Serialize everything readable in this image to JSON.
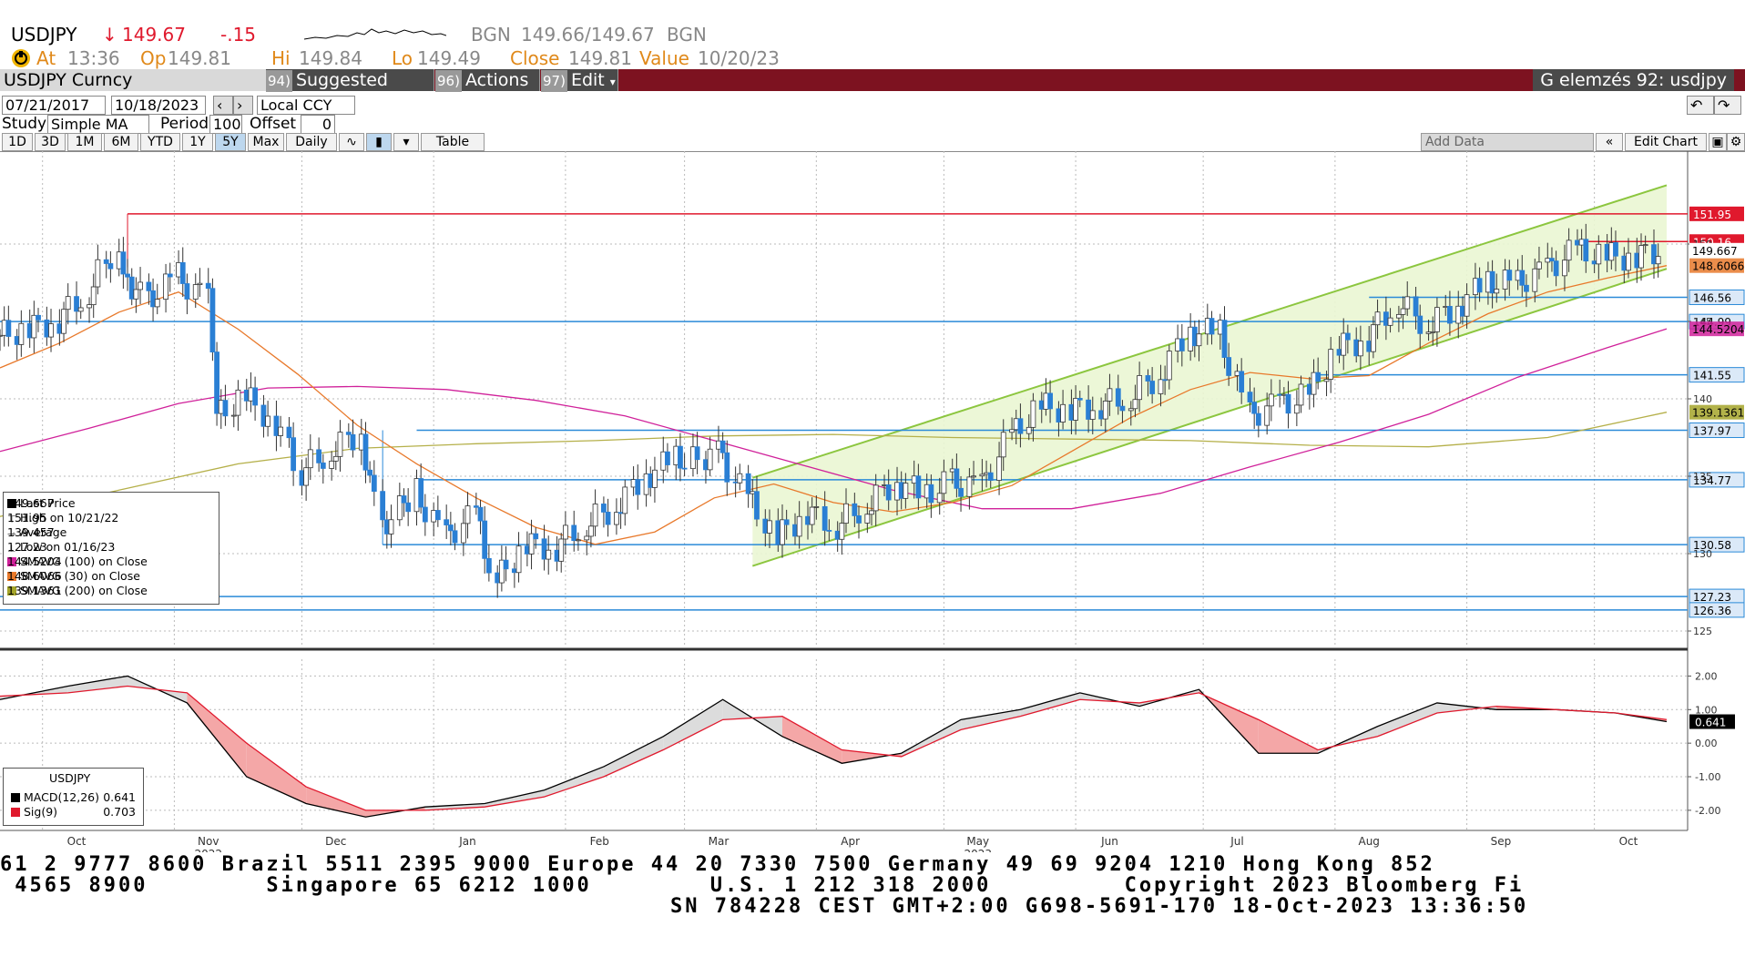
{
  "header": {
    "symbol": "USDJPY",
    "arrow": "↓",
    "last": "149.67",
    "change": "-.15",
    "src1": "BGN",
    "bidask": "149.66/149.67",
    "src2": "BGN",
    "at_label": "At",
    "at_time": "13:36",
    "op_label": "Op",
    "op": "149.81",
    "hi_label": "Hi",
    "hi": "149.84",
    "lo_label": "Lo",
    "lo": "149.49",
    "close_label": "Close",
    "close": "149.81",
    "value_label": "Value",
    "value_date": "10/20/23"
  },
  "toolbar": {
    "security": "USDJPY Curncy",
    "suggested_num": "94)",
    "suggested": "Suggested Charts",
    "actions_num": "96)",
    "actions": "Actions",
    "edit_num": "97)",
    "edit": "Edit",
    "right_title": "G elemzés 92: usdjpy"
  },
  "controls": {
    "start_date": "07/21/2017",
    "end_date": "10/18/2023",
    "currency": "Local CCY",
    "study_label": "Study",
    "study": "Simple MA",
    "period_label": "Period",
    "period": "100",
    "offset_label": "Offset",
    "offset": "0",
    "ranges": [
      "1D",
      "3D",
      "1M",
      "6M",
      "YTD",
      "1Y",
      "5Y",
      "Max"
    ],
    "selected_range": "5Y",
    "frequency": "Daily",
    "table": "Table",
    "add_data": "Add Data",
    "edit_chart": "Edit Chart"
  },
  "legend": {
    "rows": [
      {
        "label": "Last Price",
        "value": "149.667",
        "color": "#000000",
        "mark": "square"
      },
      {
        "label": "High on 10/21/22",
        "value": "151.95",
        "color": "#555555",
        "mark": "T"
      },
      {
        "label": "Average",
        "value": "139.457",
        "color": "#555555",
        "mark": "avg"
      },
      {
        "label": "Low on 01/16/23",
        "value": "127.23",
        "color": "#555555",
        "mark": "L"
      },
      {
        "label": "SMAVG (100)  on Close",
        "value": "144.5204",
        "color": "#d0219a",
        "mark": "square"
      },
      {
        "label": "SMAVG (30)  on Close",
        "value": "148.6066",
        "color": "#e8792b",
        "mark": "square"
      },
      {
        "label": "SMAVG (200)  on Close",
        "value": "139.1361",
        "color": "#a5a52a",
        "mark": "square"
      }
    ]
  },
  "macd_legend": {
    "title": "USDJPY",
    "rows": [
      {
        "label": "MACD(12,26)",
        "value": "0.641",
        "color": "#000000"
      },
      {
        "label": "Sig(9)",
        "value": "0.703",
        "color": "#e0192d"
      }
    ]
  },
  "chart_data": {
    "type": "line",
    "title": "USDJPY",
    "price_ylim": [
      124,
      156
    ],
    "macd_ylim": [
      -2.6,
      2.5
    ],
    "price_ticks": [
      "125",
      "130",
      "135",
      "140",
      "145",
      "150"
    ],
    "macd_ticks": [
      "2.00",
      "1.00",
      "0.00",
      "-1.00",
      "-2.00"
    ],
    "x_months": [
      "Oct",
      "Nov",
      "Dec",
      "Jan",
      "Feb",
      "Mar",
      "Apr",
      "May",
      "Jun",
      "Jul",
      "Aug",
      "Sep",
      "Oct"
    ],
    "x_years": [
      "2022",
      "2023"
    ],
    "x_range": [
      "2022-09-21",
      "2023-10-18"
    ],
    "close_series": [
      [
        "2022-09-21",
        144.1
      ],
      [
        "2022-09-28",
        144.5
      ],
      [
        "2022-10-05",
        145.1
      ],
      [
        "2022-10-12",
        146.9
      ],
      [
        "2022-10-19",
        149.9
      ],
      [
        "2022-10-21",
        147.7
      ],
      [
        "2022-10-26",
        146.3
      ],
      [
        "2022-11-02",
        147.9
      ],
      [
        "2022-11-09",
        146.4
      ],
      [
        "2022-11-11",
        138.8
      ],
      [
        "2022-11-18",
        140.2
      ],
      [
        "2022-11-25",
        138.4
      ],
      [
        "2022-12-01",
        135.3
      ],
      [
        "2022-12-08",
        136.6
      ],
      [
        "2022-12-15",
        137.8
      ],
      [
        "2022-12-20",
        131.7
      ],
      [
        "2022-12-28",
        134.0
      ],
      [
        "2023-01-04",
        131.0
      ],
      [
        "2023-01-11",
        132.5
      ],
      [
        "2023-01-16",
        128.2
      ],
      [
        "2023-01-23",
        130.6
      ],
      [
        "2023-01-30",
        130.4
      ],
      [
        "2023-02-06",
        131.9
      ],
      [
        "2023-02-13",
        133.0
      ],
      [
        "2023-02-20",
        134.9
      ],
      [
        "2023-02-27",
        136.2
      ],
      [
        "2023-03-03",
        136.0
      ],
      [
        "2023-03-09",
        136.6
      ],
      [
        "2023-03-16",
        133.7
      ],
      [
        "2023-03-23",
        131.0
      ],
      [
        "2023-03-30",
        132.7
      ],
      [
        "2023-04-06",
        131.8
      ],
      [
        "2023-04-13",
        133.1
      ],
      [
        "2023-04-20",
        134.6
      ],
      [
        "2023-04-27",
        133.9
      ],
      [
        "2023-05-03",
        134.6
      ],
      [
        "2023-05-10",
        134.3
      ],
      [
        "2023-05-17",
        137.6
      ],
      [
        "2023-05-24",
        139.5
      ],
      [
        "2023-05-31",
        139.3
      ],
      [
        "2023-06-07",
        139.6
      ],
      [
        "2023-06-14",
        140.1
      ],
      [
        "2023-06-21",
        141.5
      ],
      [
        "2023-06-28",
        144.3
      ],
      [
        "2023-07-05",
        144.3
      ],
      [
        "2023-07-12",
        138.9
      ],
      [
        "2023-07-19",
        139.6
      ],
      [
        "2023-07-26",
        140.2
      ],
      [
        "2023-08-02",
        143.3
      ],
      [
        "2023-08-09",
        143.9
      ],
      [
        "2023-08-16",
        146.3
      ],
      [
        "2023-08-23",
        144.8
      ],
      [
        "2023-08-30",
        145.9
      ],
      [
        "2023-09-06",
        147.6
      ],
      [
        "2023-09-13",
        147.4
      ],
      [
        "2023-09-20",
        148.3
      ],
      [
        "2023-09-27",
        149.6
      ],
      [
        "2023-10-04",
        149.2
      ],
      [
        "2023-10-11",
        149.2
      ],
      [
        "2023-10-18",
        149.67
      ]
    ],
    "sma30": [
      [
        "2022-09-21",
        142.0
      ],
      [
        "2022-10-05",
        143.6
      ],
      [
        "2022-10-19",
        145.6
      ],
      [
        "2022-11-02",
        146.9
      ],
      [
        "2022-11-16",
        144.5
      ],
      [
        "2022-11-30",
        141.6
      ],
      [
        "2022-12-14",
        138.3
      ],
      [
        "2022-12-28",
        135.8
      ],
      [
        "2023-01-11",
        133.6
      ],
      [
        "2023-01-25",
        131.7
      ],
      [
        "2023-02-08",
        130.6
      ],
      [
        "2023-02-22",
        131.4
      ],
      [
        "2023-03-08",
        133.6
      ],
      [
        "2023-03-22",
        134.5
      ],
      [
        "2023-04-05",
        133.3
      ],
      [
        "2023-04-19",
        132.7
      ],
      [
        "2023-05-03",
        133.3
      ],
      [
        "2023-05-17",
        134.4
      ],
      [
        "2023-05-31",
        136.6
      ],
      [
        "2023-06-14",
        138.8
      ],
      [
        "2023-06-28",
        140.6
      ],
      [
        "2023-07-12",
        141.7
      ],
      [
        "2023-07-26",
        141.3
      ],
      [
        "2023-08-09",
        141.5
      ],
      [
        "2023-08-23",
        143.6
      ],
      [
        "2023-09-06",
        145.5
      ],
      [
        "2023-09-20",
        146.9
      ],
      [
        "2023-10-04",
        147.8
      ],
      [
        "2023-10-18",
        148.6066
      ]
    ],
    "sma100": [
      [
        "2022-09-21",
        136.6
      ],
      [
        "2022-10-12",
        138.1
      ],
      [
        "2022-11-02",
        139.7
      ],
      [
        "2022-11-23",
        140.7
      ],
      [
        "2022-12-14",
        140.8
      ],
      [
        "2023-01-04",
        140.6
      ],
      [
        "2023-01-25",
        139.9
      ],
      [
        "2023-02-15",
        138.9
      ],
      [
        "2023-03-08",
        137.3
      ],
      [
        "2023-03-29",
        135.7
      ],
      [
        "2023-04-19",
        134.1
      ],
      [
        "2023-05-10",
        132.9
      ],
      [
        "2023-05-31",
        132.9
      ],
      [
        "2023-06-21",
        133.9
      ],
      [
        "2023-07-12",
        135.6
      ],
      [
        "2023-08-02",
        137.2
      ],
      [
        "2023-08-23",
        139.0
      ],
      [
        "2023-09-13",
        141.4
      ],
      [
        "2023-10-04",
        143.3
      ],
      [
        "2023-10-18",
        144.5204
      ]
    ],
    "sma200": [
      [
        "2022-09-21",
        132.4
      ],
      [
        "2022-10-19",
        134.1
      ],
      [
        "2022-11-16",
        135.8
      ],
      [
        "2022-12-14",
        136.8
      ],
      [
        "2023-01-11",
        137.1
      ],
      [
        "2023-02-08",
        137.3
      ],
      [
        "2023-03-08",
        137.6
      ],
      [
        "2023-04-05",
        137.7
      ],
      [
        "2023-05-03",
        137.5
      ],
      [
        "2023-05-31",
        137.4
      ],
      [
        "2023-06-28",
        137.3
      ],
      [
        "2023-07-26",
        137.0
      ],
      [
        "2023-08-23",
        136.9
      ],
      [
        "2023-09-20",
        137.5
      ],
      [
        "2023-10-18",
        139.1361
      ]
    ],
    "horizontal_levels": [
      {
        "value": 151.95,
        "label": "151.95",
        "color": "#e0192d"
      },
      {
        "value": 150.16,
        "label": "150.16",
        "color": "#e0192d"
      },
      {
        "value": 146.56,
        "label": "146.56",
        "color": "#2a8ad8"
      },
      {
        "value": 144.99,
        "label": "144.99",
        "color": "#2a8ad8"
      },
      {
        "value": 141.55,
        "label": "141.55",
        "color": "#2a8ad8"
      },
      {
        "value": 137.97,
        "label": "137.97",
        "color": "#2a8ad8"
      },
      {
        "value": 134.77,
        "label": "134.77",
        "color": "#2a8ad8"
      },
      {
        "value": 130.58,
        "label": "130.58",
        "color": "#2a8ad8"
      },
      {
        "value": 127.23,
        "label": "127.23",
        "color": "#2a8ad8"
      },
      {
        "value": 126.36,
        "label": "126.36",
        "color": "#2a8ad8"
      }
    ],
    "axis_labels": [
      {
        "value": 149.6,
        "label": "149.667",
        "color": "#000000"
      },
      {
        "value": 148.6066,
        "label": "148.6066",
        "color": "#e8792b"
      },
      {
        "value": 144.5204,
        "label": "144.5204",
        "color": "#d0219a"
      },
      {
        "value": 139.1361,
        "label": "139.1361",
        "color": "#a5a52a"
      }
    ],
    "channel": {
      "lower_start": [
        "2023-03-17",
        129.2
      ],
      "lower_end": [
        "2023-10-18",
        148.4
      ],
      "upper_start": [
        "2023-03-17",
        134.9
      ],
      "upper_end": [
        "2023-10-18",
        153.8
      ]
    },
    "macd": [
      [
        "2022-09-21",
        1.3
      ],
      [
        "2022-10-07",
        1.7
      ],
      [
        "2022-10-21",
        2.0
      ],
      [
        "2022-11-04",
        1.2
      ],
      [
        "2022-11-18",
        -1.0
      ],
      [
        "2022-12-02",
        -1.8
      ],
      [
        "2022-12-16",
        -2.2
      ],
      [
        "2022-12-30",
        -1.9
      ],
      [
        "2023-01-13",
        -1.8
      ],
      [
        "2023-01-27",
        -1.4
      ],
      [
        "2023-02-10",
        -0.7
      ],
      [
        "2023-02-24",
        0.2
      ],
      [
        "2023-03-10",
        1.3
      ],
      [
        "2023-03-24",
        0.2
      ],
      [
        "2023-04-07",
        -0.6
      ],
      [
        "2023-04-21",
        -0.3
      ],
      [
        "2023-05-05",
        0.7
      ],
      [
        "2023-05-19",
        1.0
      ],
      [
        "2023-06-02",
        1.5
      ],
      [
        "2023-06-16",
        1.1
      ],
      [
        "2023-06-30",
        1.6
      ],
      [
        "2023-07-14",
        -0.3
      ],
      [
        "2023-07-28",
        -0.3
      ],
      [
        "2023-08-11",
        0.5
      ],
      [
        "2023-08-25",
        1.2
      ],
      [
        "2023-09-08",
        1.0
      ],
      [
        "2023-09-22",
        1.0
      ],
      [
        "2023-10-06",
        0.9
      ],
      [
        "2023-10-18",
        0.641
      ]
    ],
    "signal": [
      [
        "2022-09-21",
        1.4
      ],
      [
        "2022-10-07",
        1.5
      ],
      [
        "2022-10-21",
        1.7
      ],
      [
        "2022-11-04",
        1.5
      ],
      [
        "2022-11-18",
        0.0
      ],
      [
        "2022-12-02",
        -1.3
      ],
      [
        "2022-12-16",
        -2.0
      ],
      [
        "2022-12-30",
        -2.0
      ],
      [
        "2023-01-13",
        -1.9
      ],
      [
        "2023-01-27",
        -1.6
      ],
      [
        "2023-02-10",
        -1.0
      ],
      [
        "2023-02-24",
        -0.2
      ],
      [
        "2023-03-10",
        0.7
      ],
      [
        "2023-03-24",
        0.8
      ],
      [
        "2023-04-07",
        -0.2
      ],
      [
        "2023-04-21",
        -0.4
      ],
      [
        "2023-05-05",
        0.4
      ],
      [
        "2023-05-19",
        0.8
      ],
      [
        "2023-06-02",
        1.3
      ],
      [
        "2023-06-16",
        1.2
      ],
      [
        "2023-06-30",
        1.5
      ],
      [
        "2023-07-14",
        0.7
      ],
      [
        "2023-07-28",
        -0.2
      ],
      [
        "2023-08-11",
        0.2
      ],
      [
        "2023-08-25",
        0.9
      ],
      [
        "2023-09-08",
        1.1
      ],
      [
        "2023-09-22",
        1.0
      ],
      [
        "2023-10-06",
        0.9
      ],
      [
        "2023-10-18",
        0.703
      ]
    ]
  },
  "footer": {
    "line1": "61 2 9777 8600 Brazil 5511 2395 9000 Europe 44 20 7330 7500 Germany 49 69 9204 1210 Hong Kong 852",
    "line2": " 4565 8900        Singapore 65 6212 1000        U.S. 1 212 318 2000         Copyright 2023 Bloomberg Fi",
    "line3": "SN 784228 CEST GMT+2:00 G698-5691-170 18-Oct-2023 13:36:50"
  }
}
